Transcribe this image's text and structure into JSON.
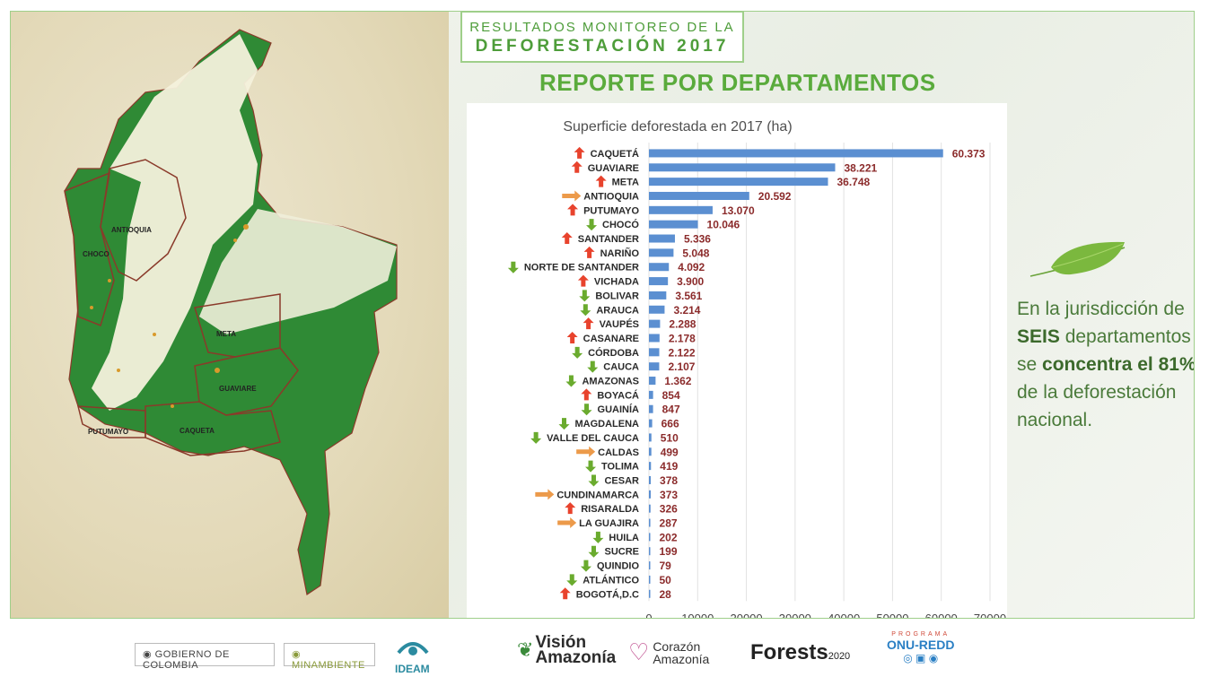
{
  "header": {
    "title_line1": "RESULTADOS MONITOREO DE LA",
    "title_line2": "DEFORESTACIÓN 2017",
    "report_heading": "REPORTE POR DEPARTAMENTOS"
  },
  "map": {
    "labels": [
      "ANTIOQUIA",
      "CHOCO",
      "META",
      "GUAVIARE",
      "PUTUMAYO",
      "CAQUETA"
    ]
  },
  "side_text": {
    "pre": "En la jurisdicción de",
    "seis": "SEIS",
    "mid": "departamentos se",
    "concentra": "concentra el 81%",
    "post": "de la deforestación nacional."
  },
  "footer": {
    "gobierno": "GOBIERNO DE COLOMBIA",
    "minambiente": "MINAMBIENTE",
    "ideam": "IDEAM",
    "vision": "Visión",
    "vision2": "Amazonía",
    "corazon": "Corazón",
    "corazon2": "Amazonía",
    "forests": "Forests",
    "forests_year": "2020",
    "onu_prog": "PROGRAMA",
    "onu": "ONU-REDD"
  },
  "colors": {
    "bar": "#5b8fd1",
    "value_label": "#8b2b2b",
    "arrow_up": "#e8432d",
    "arrow_down": "#6aab2e",
    "arrow_right": "#ec9a4a",
    "heading_green": "#5aab3c"
  },
  "chart_data": {
    "type": "bar",
    "orientation": "horizontal",
    "title": "Superficie deforestada en 2017 (ha)",
    "xlim": [
      0,
      70000
    ],
    "xticks": [
      0,
      10000,
      20000,
      30000,
      40000,
      50000,
      60000,
      70000
    ],
    "categories": [
      "CAQUETÁ",
      "GUAVIARE",
      "META",
      "ANTIOQUIA",
      "PUTUMAYO",
      "CHOCÓ",
      "SANTANDER",
      "NARIÑO",
      "NORTE DE SANTANDER",
      "VICHADA",
      "BOLIVAR",
      "ARAUCA",
      "VAUPÉS",
      "CASANARE",
      "CÓRDOBA",
      "CAUCA",
      "AMAZONAS",
      "BOYACÁ",
      "GUAINÍA",
      "MAGDALENA",
      "VALLE DEL CAUCA",
      "CALDAS",
      "TOLIMA",
      "CESAR",
      "CUNDINAMARCA",
      "RISARALDA",
      "LA GUAJIRA",
      "HUILA",
      "SUCRE",
      "QUINDIO",
      "ATLÁNTICO",
      "BOGOTÁ,D.C"
    ],
    "values": [
      60373,
      38221,
      36748,
      20592,
      13070,
      10046,
      5336,
      5048,
      4092,
      3900,
      3561,
      3214,
      2288,
      2178,
      2122,
      2107,
      1362,
      854,
      847,
      666,
      510,
      499,
      419,
      378,
      373,
      326,
      287,
      202,
      199,
      79,
      50,
      28
    ],
    "value_labels": [
      "60.373",
      "38.221",
      "36.748",
      "20.592",
      "13.070",
      "10.046",
      "5.336",
      "5.048",
      "4.092",
      "3.900",
      "3.561",
      "3.214",
      "2.288",
      "2.178",
      "2.122",
      "2.107",
      "1.362",
      "854",
      "847",
      "666",
      "510",
      "499",
      "419",
      "378",
      "373",
      "326",
      "287",
      "202",
      "199",
      "79",
      "50",
      "28"
    ],
    "trend": [
      "up",
      "up",
      "up",
      "right",
      "up",
      "down",
      "up",
      "up",
      "down",
      "up",
      "down",
      "down",
      "up",
      "up",
      "down",
      "down",
      "down",
      "up",
      "down",
      "down",
      "down",
      "right",
      "down",
      "down",
      "right",
      "up",
      "right",
      "down",
      "down",
      "down",
      "down",
      "up"
    ],
    "grid": true,
    "legend": "none"
  }
}
